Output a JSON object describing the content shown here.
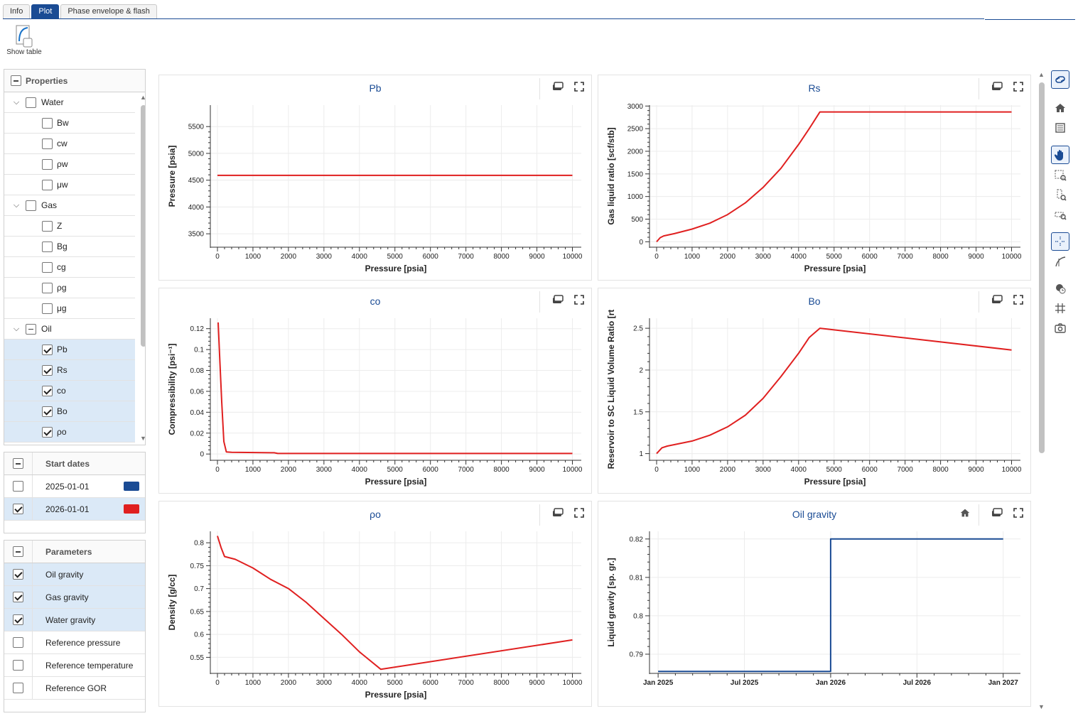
{
  "tabs": [
    {
      "label": "Info",
      "active": false
    },
    {
      "label": "Plot",
      "active": true
    },
    {
      "label": "Phase envelope & flash",
      "active": false
    }
  ],
  "toolbar": {
    "show_table_label": "Show table"
  },
  "properties": {
    "header": "Properties",
    "groups": [
      {
        "label": "Water",
        "state": "unchecked",
        "items": [
          {
            "label": "Bw",
            "checked": false
          },
          {
            "label": "cw",
            "checked": false
          },
          {
            "label": "ρw",
            "checked": false
          },
          {
            "label": "μw",
            "checked": false
          }
        ]
      },
      {
        "label": "Gas",
        "state": "unchecked",
        "items": [
          {
            "label": "Z",
            "checked": false
          },
          {
            "label": "Bg",
            "checked": false
          },
          {
            "label": "cg",
            "checked": false
          },
          {
            "label": "ρg",
            "checked": false
          },
          {
            "label": "μg",
            "checked": false
          }
        ]
      },
      {
        "label": "Oil",
        "state": "partial",
        "items": [
          {
            "label": "Pb",
            "checked": true
          },
          {
            "label": "Rs",
            "checked": true
          },
          {
            "label": "co",
            "checked": true
          },
          {
            "label": "Bo",
            "checked": true
          },
          {
            "label": "ρo",
            "checked": true
          }
        ]
      }
    ]
  },
  "start_dates": {
    "header": "Start dates",
    "rows": [
      {
        "label": "2025-01-01",
        "checked": false,
        "color": "#1a4b94"
      },
      {
        "label": "2026-01-01",
        "checked": true,
        "color": "#e02020"
      }
    ]
  },
  "parameters": {
    "header": "Parameters",
    "rows": [
      {
        "label": "Oil gravity",
        "checked": true
      },
      {
        "label": "Gas gravity",
        "checked": true
      },
      {
        "label": "Water gravity",
        "checked": true
      },
      {
        "label": "Reference pressure",
        "checked": false
      },
      {
        "label": "Reference temperature",
        "checked": false
      },
      {
        "label": "Reference GOR",
        "checked": false
      }
    ]
  },
  "colors": {
    "accent": "#1a4b94",
    "series_red": "#e02020",
    "series_blue": "#1a4b94"
  },
  "chart_data": [
    {
      "title": "Pb",
      "type": "line",
      "xlabel": "Pressure [psia]",
      "ylabel": "Pressure [psia]",
      "xlim": [
        -200,
        10250
      ],
      "ylim": [
        3250,
        5900
      ],
      "xticks": [
        0,
        1000,
        2000,
        3000,
        4000,
        5000,
        6000,
        7000,
        8000,
        9000,
        10000
      ],
      "yticks": [
        3500,
        4000,
        4500,
        5000,
        5500
      ],
      "series": [
        {
          "color": "#e02020",
          "x": [
            0,
            10000
          ],
          "y": [
            4590,
            4590
          ]
        }
      ]
    },
    {
      "title": "Rs",
      "type": "line",
      "xlabel": "Pressure [psia]",
      "ylabel": "Gas liquid ratio [scf/stb]",
      "xlim": [
        -200,
        10250
      ],
      "ylim": [
        -120,
        3020
      ],
      "xticks": [
        0,
        1000,
        2000,
        3000,
        4000,
        5000,
        6000,
        7000,
        8000,
        9000,
        10000
      ],
      "yticks": [
        0,
        500,
        1000,
        1500,
        2000,
        2500,
        3000
      ],
      "series": [
        {
          "color": "#e02020",
          "x": [
            0,
            100,
            200,
            500,
            1000,
            1500,
            2000,
            2500,
            3000,
            3500,
            4000,
            4300,
            4600,
            10000
          ],
          "y": [
            0,
            90,
            130,
            180,
            280,
            410,
            600,
            860,
            1200,
            1620,
            2150,
            2500,
            2870,
            2870
          ]
        }
      ]
    },
    {
      "title": "co",
      "type": "line",
      "xlabel": "Pressure [psia]",
      "ylabel": "Compressibility [psi⁻¹]",
      "xlim": [
        -200,
        10250
      ],
      "ylim": [
        -0.006,
        0.13
      ],
      "xticks": [
        0,
        1000,
        2000,
        3000,
        4000,
        5000,
        6000,
        7000,
        8000,
        9000,
        10000
      ],
      "yticks": [
        0,
        0.02,
        0.04,
        0.06,
        0.08,
        0.1,
        0.12
      ],
      "series": [
        {
          "color": "#e02020",
          "x": [
            20,
            60,
            120,
            180,
            250,
            400,
            1600,
            1700,
            10000
          ],
          "y": [
            0.126,
            0.095,
            0.05,
            0.012,
            0.002,
            0.0016,
            0.0012,
            0.0005,
            0.0005
          ]
        }
      ]
    },
    {
      "title": "Bo",
      "type": "line",
      "xlabel": "Pressure [psia]",
      "ylabel": "Reservoir to SC Liquid Volume Ratio [rt",
      "xlim": [
        -200,
        10250
      ],
      "ylim": [
        0.92,
        2.62
      ],
      "xticks": [
        0,
        1000,
        2000,
        3000,
        4000,
        5000,
        6000,
        7000,
        8000,
        9000,
        10000
      ],
      "yticks": [
        1,
        1.5,
        2,
        2.5
      ],
      "series": [
        {
          "color": "#e02020",
          "x": [
            0,
            150,
            300,
            1000,
            1500,
            2000,
            2500,
            3000,
            3500,
            4000,
            4300,
            4600,
            10000
          ],
          "y": [
            1.0,
            1.07,
            1.09,
            1.15,
            1.22,
            1.32,
            1.46,
            1.66,
            1.92,
            2.2,
            2.39,
            2.5,
            2.24
          ]
        }
      ]
    },
    {
      "title": "ρo",
      "type": "line",
      "xlabel": "Pressure [psia]",
      "ylabel": "Density [g/cc]",
      "xlim": [
        -200,
        10250
      ],
      "ylim": [
        0.515,
        0.825
      ],
      "xticks": [
        0,
        1000,
        2000,
        3000,
        4000,
        5000,
        6000,
        7000,
        8000,
        9000,
        10000
      ],
      "yticks": [
        0.55,
        0.6,
        0.65,
        0.7,
        0.75,
        0.8
      ],
      "series": [
        {
          "color": "#e02020",
          "x": [
            0,
            100,
            200,
            500,
            1000,
            1500,
            2000,
            2500,
            3000,
            3500,
            4000,
            4600,
            10000
          ],
          "y": [
            0.815,
            0.79,
            0.77,
            0.764,
            0.745,
            0.72,
            0.7,
            0.67,
            0.635,
            0.6,
            0.562,
            0.524,
            0.588
          ]
        }
      ]
    },
    {
      "title": "Oil gravity",
      "type": "line",
      "xlabel": "",
      "ylabel": "Liquid gravity [sp. gr.]",
      "xlim": [
        -0.1,
        4.2
      ],
      "ylim": [
        0.785,
        0.822
      ],
      "xticks": [
        0,
        1,
        2,
        3,
        4
      ],
      "xticklabels": [
        "Jan 2025",
        "Jul 2025",
        "Jan 2026",
        "Jul 2026",
        "Jan 2027"
      ],
      "yticks": [
        0.79,
        0.8,
        0.81,
        0.82
      ],
      "series": [
        {
          "color": "#1a4b94",
          "x": [
            0,
            2,
            2,
            4
          ],
          "y": [
            0.7855,
            0.7855,
            0.82,
            0.82
          ]
        }
      ]
    }
  ]
}
